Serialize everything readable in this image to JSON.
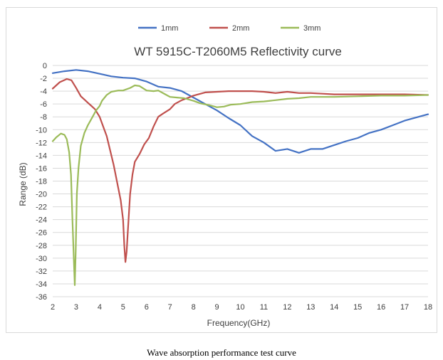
{
  "chart_data": {
    "type": "line",
    "title": "WT 5915C-T2060M5 Reflectivity curve",
    "xlabel": "Frequency(GHz)",
    "ylabel": "Range (dB)",
    "xlim": [
      2,
      18
    ],
    "ylim": [
      -36,
      0
    ],
    "xticks": [
      2,
      3,
      4,
      5,
      6,
      7,
      8,
      9,
      10,
      11,
      12,
      13,
      14,
      15,
      16,
      17,
      18
    ],
    "yticks": [
      0,
      -2,
      -4,
      -6,
      -8,
      -10,
      -12,
      -14,
      -16,
      -18,
      -20,
      -22,
      -24,
      -26,
      -28,
      -30,
      -32,
      -34,
      -36
    ],
    "grid": "horizontal",
    "legend_position": "top",
    "series": [
      {
        "name": "1mm",
        "color": "#4472c4",
        "points": [
          [
            2,
            -1.2
          ],
          [
            2.5,
            -0.9
          ],
          [
            3,
            -0.7
          ],
          [
            3.5,
            -0.9
          ],
          [
            4,
            -1.3
          ],
          [
            4.5,
            -1.7
          ],
          [
            5,
            -1.9
          ],
          [
            5.5,
            -2.0
          ],
          [
            6,
            -2.5
          ],
          [
            6.5,
            -3.3
          ],
          [
            7,
            -3.5
          ],
          [
            7.5,
            -4.0
          ],
          [
            8,
            -5.0
          ],
          [
            8.5,
            -6.0
          ],
          [
            9,
            -7.0
          ],
          [
            9.5,
            -8.2
          ],
          [
            10,
            -9.3
          ],
          [
            10.5,
            -11.0
          ],
          [
            11,
            -12.0
          ],
          [
            11.5,
            -13.3
          ],
          [
            12,
            -13.0
          ],
          [
            12.5,
            -13.6
          ],
          [
            13,
            -13.0
          ],
          [
            13.5,
            -13.0
          ],
          [
            14,
            -12.4
          ],
          [
            14.5,
            -11.8
          ],
          [
            15,
            -11.3
          ],
          [
            15.5,
            -10.5
          ],
          [
            16,
            -10.0
          ],
          [
            16.5,
            -9.3
          ],
          [
            17,
            -8.6
          ],
          [
            17.5,
            -8.1
          ],
          [
            18,
            -7.6
          ]
        ]
      },
      {
        "name": "2mm",
        "color": "#c0504d",
        "points": [
          [
            2,
            -3.6
          ],
          [
            2.3,
            -2.6
          ],
          [
            2.6,
            -2.1
          ],
          [
            2.8,
            -2.3
          ],
          [
            3,
            -3.5
          ],
          [
            3.2,
            -4.8
          ],
          [
            3.5,
            -5.8
          ],
          [
            3.8,
            -6.8
          ],
          [
            4,
            -8.0
          ],
          [
            4.3,
            -11.0
          ],
          [
            4.6,
            -15.5
          ],
          [
            4.9,
            -21.0
          ],
          [
            5.0,
            -24.0
          ],
          [
            5.05,
            -28.0
          ],
          [
            5.1,
            -30.6
          ],
          [
            5.15,
            -29.0
          ],
          [
            5.2,
            -26.0
          ],
          [
            5.3,
            -20.0
          ],
          [
            5.4,
            -17.0
          ],
          [
            5.5,
            -15.0
          ],
          [
            5.7,
            -13.8
          ],
          [
            5.9,
            -12.3
          ],
          [
            6.1,
            -11.3
          ],
          [
            6.3,
            -9.5
          ],
          [
            6.5,
            -8.0
          ],
          [
            6.7,
            -7.5
          ],
          [
            7,
            -6.8
          ],
          [
            7.2,
            -6.0
          ],
          [
            7.5,
            -5.4
          ],
          [
            7.8,
            -5.0
          ],
          [
            8,
            -4.7
          ],
          [
            8.5,
            -4.2
          ],
          [
            9,
            -4.1
          ],
          [
            9.5,
            -4.0
          ],
          [
            10,
            -4.0
          ],
          [
            10.5,
            -4.0
          ],
          [
            11,
            -4.1
          ],
          [
            11.5,
            -4.3
          ],
          [
            12,
            -4.1
          ],
          [
            12.5,
            -4.3
          ],
          [
            13,
            -4.3
          ],
          [
            13.5,
            -4.4
          ],
          [
            14,
            -4.5
          ],
          [
            15,
            -4.5
          ],
          [
            16,
            -4.5
          ],
          [
            17,
            -4.5
          ],
          [
            18,
            -4.6
          ]
        ]
      },
      {
        "name": "3mm",
        "color": "#9bbb59",
        "points": [
          [
            2,
            -11.8
          ],
          [
            2.15,
            -11.2
          ],
          [
            2.35,
            -10.6
          ],
          [
            2.5,
            -10.8
          ],
          [
            2.6,
            -11.5
          ],
          [
            2.7,
            -13.5
          ],
          [
            2.78,
            -17.0
          ],
          [
            2.84,
            -24.0
          ],
          [
            2.9,
            -30.0
          ],
          [
            2.94,
            -34.2
          ],
          [
            2.98,
            -29.0
          ],
          [
            3.03,
            -20.0
          ],
          [
            3.1,
            -16.0
          ],
          [
            3.2,
            -12.5
          ],
          [
            3.35,
            -10.5
          ],
          [
            3.5,
            -9.3
          ],
          [
            3.7,
            -8.0
          ],
          [
            3.85,
            -7.0
          ],
          [
            4.0,
            -6.3
          ],
          [
            4.1,
            -5.5
          ],
          [
            4.3,
            -4.6
          ],
          [
            4.5,
            -4.1
          ],
          [
            4.8,
            -3.9
          ],
          [
            5,
            -3.9
          ],
          [
            5.3,
            -3.5
          ],
          [
            5.5,
            -3.1
          ],
          [
            5.7,
            -3.2
          ],
          [
            6,
            -3.9
          ],
          [
            6.3,
            -4.0
          ],
          [
            6.5,
            -3.9
          ],
          [
            6.8,
            -4.5
          ],
          [
            7,
            -4.9
          ],
          [
            7.3,
            -5.0
          ],
          [
            7.6,
            -5.1
          ],
          [
            8,
            -5.5
          ],
          [
            8.3,
            -5.9
          ],
          [
            8.7,
            -6.2
          ],
          [
            9,
            -6.5
          ],
          [
            9.3,
            -6.4
          ],
          [
            9.6,
            -6.1
          ],
          [
            10,
            -6.0
          ],
          [
            10.5,
            -5.7
          ],
          [
            11,
            -5.6
          ],
          [
            11.5,
            -5.4
          ],
          [
            12,
            -5.2
          ],
          [
            12.5,
            -5.1
          ],
          [
            13,
            -4.9
          ],
          [
            14,
            -4.9
          ],
          [
            15,
            -4.8
          ],
          [
            16,
            -4.7
          ],
          [
            17,
            -4.7
          ],
          [
            18,
            -4.6
          ]
        ]
      }
    ]
  },
  "caption": "Wave absorption performance test curve"
}
